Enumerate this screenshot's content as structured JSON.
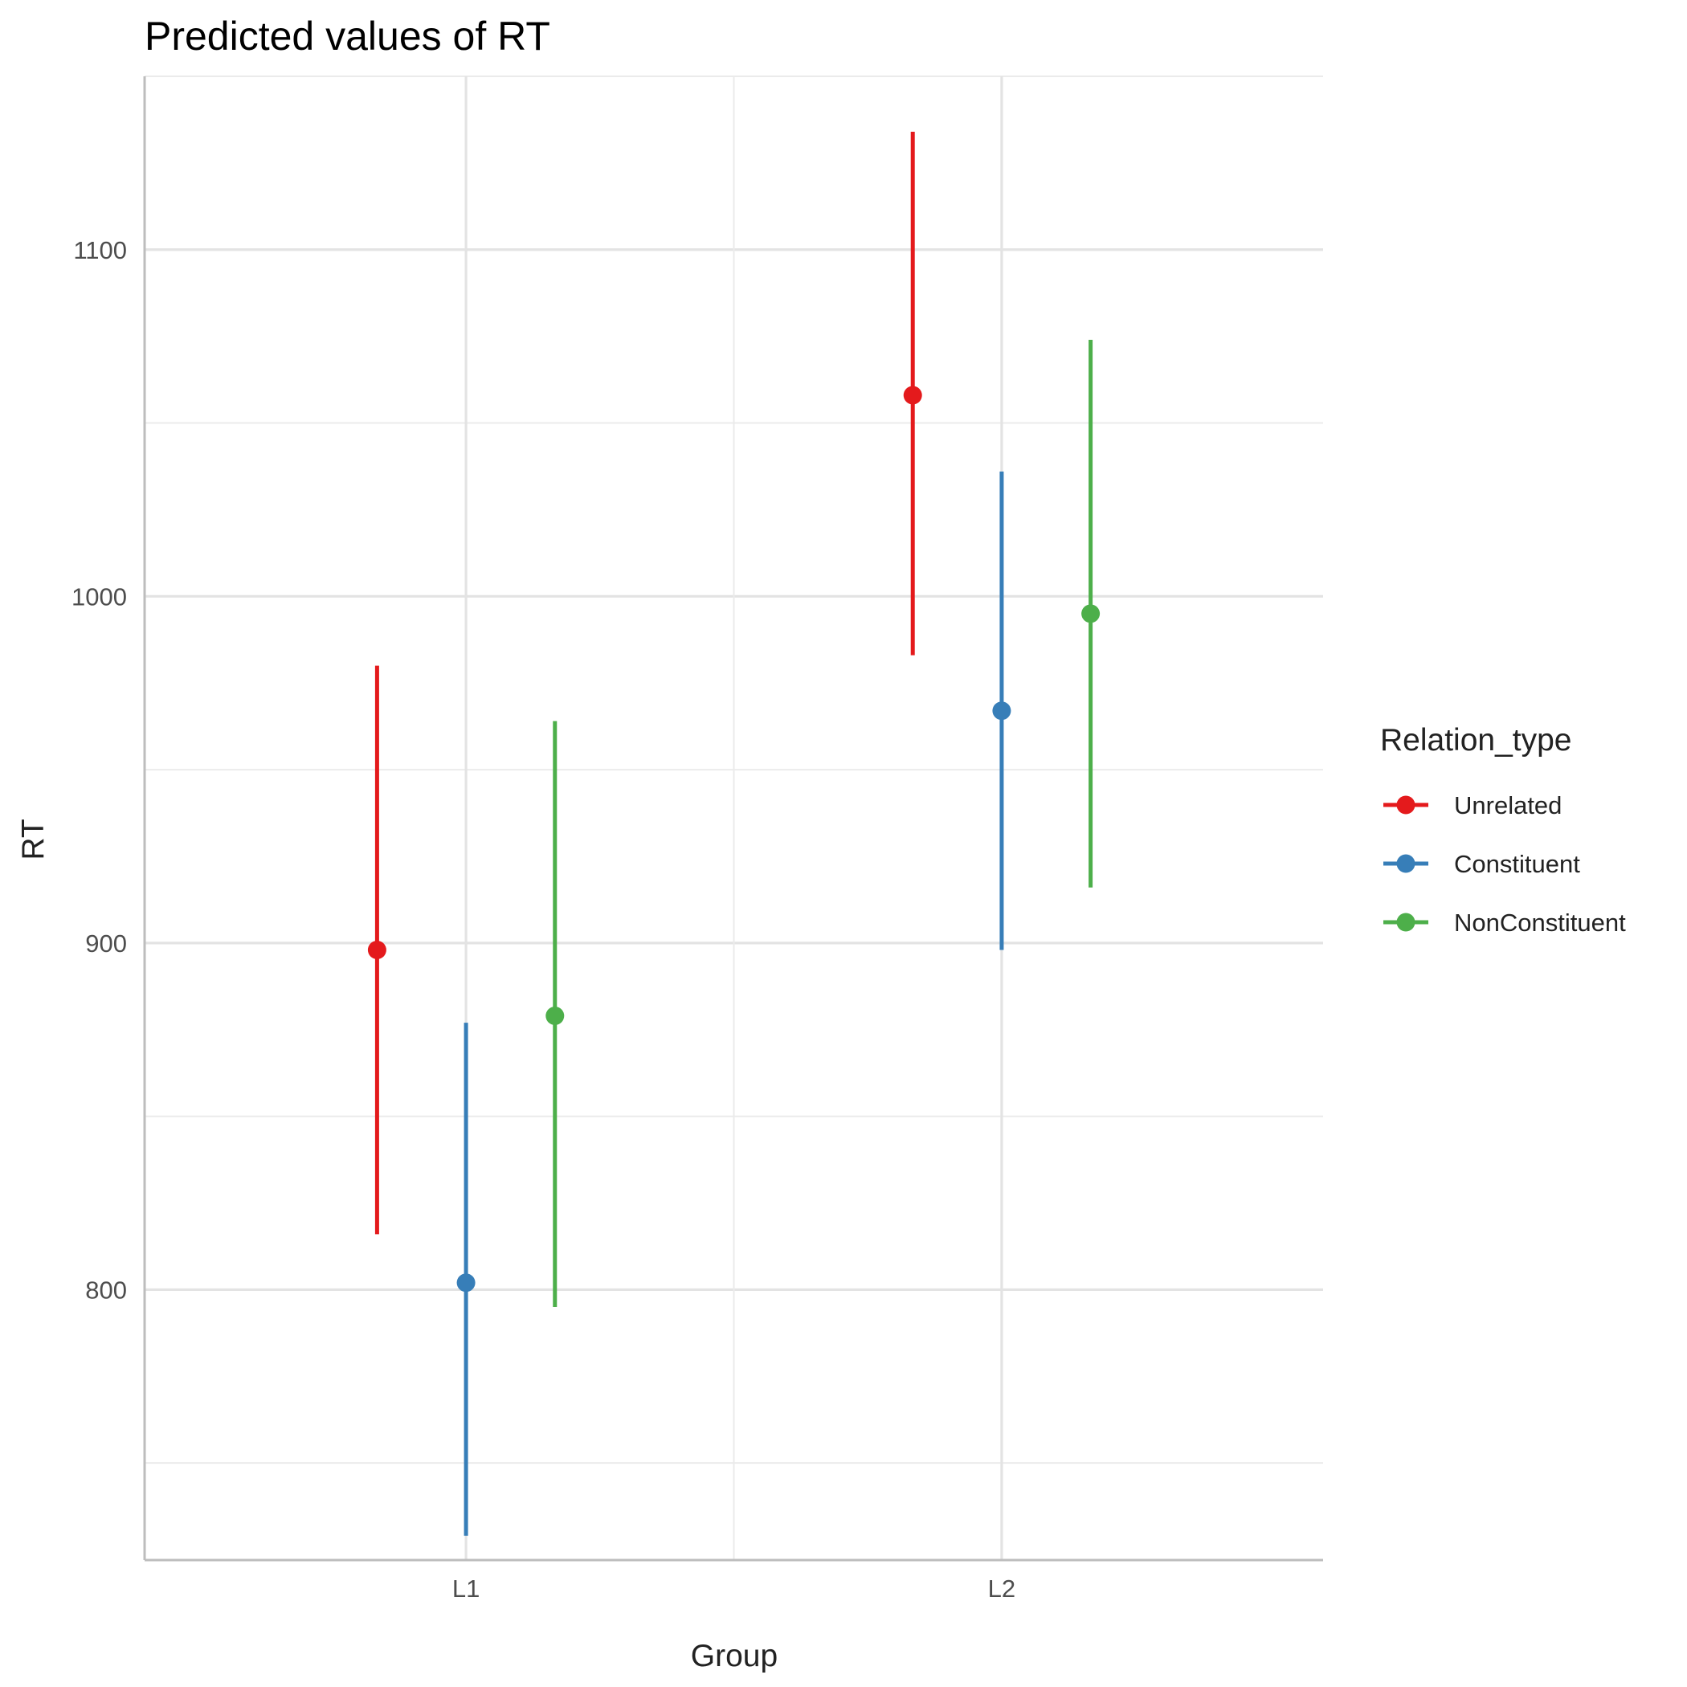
{
  "chart_data": {
    "type": "scatter",
    "title": "Predicted values of RT",
    "xlabel": "Group",
    "ylabel": "RT",
    "categories": [
      "L1",
      "L2"
    ],
    "ylim": [
      722,
      1150
    ],
    "yticks": [
      800,
      900,
      1000,
      1100
    ],
    "grid": true,
    "legend": {
      "title": "Relation_type",
      "position": "right"
    },
    "series": [
      {
        "name": "Unrelated",
        "color": "#e41a1c",
        "values": [
          898,
          1058
        ],
        "lower": [
          816,
          983
        ],
        "upper": [
          980,
          1134
        ]
      },
      {
        "name": "Constituent",
        "color": "#377eb8",
        "values": [
          802,
          967
        ],
        "lower": [
          729,
          898
        ],
        "upper": [
          877,
          1036
        ]
      },
      {
        "name": "NonConstituent",
        "color": "#4daf4a",
        "values": [
          879,
          995
        ],
        "lower": [
          795,
          916
        ],
        "upper": [
          964,
          1074
        ]
      }
    ]
  }
}
